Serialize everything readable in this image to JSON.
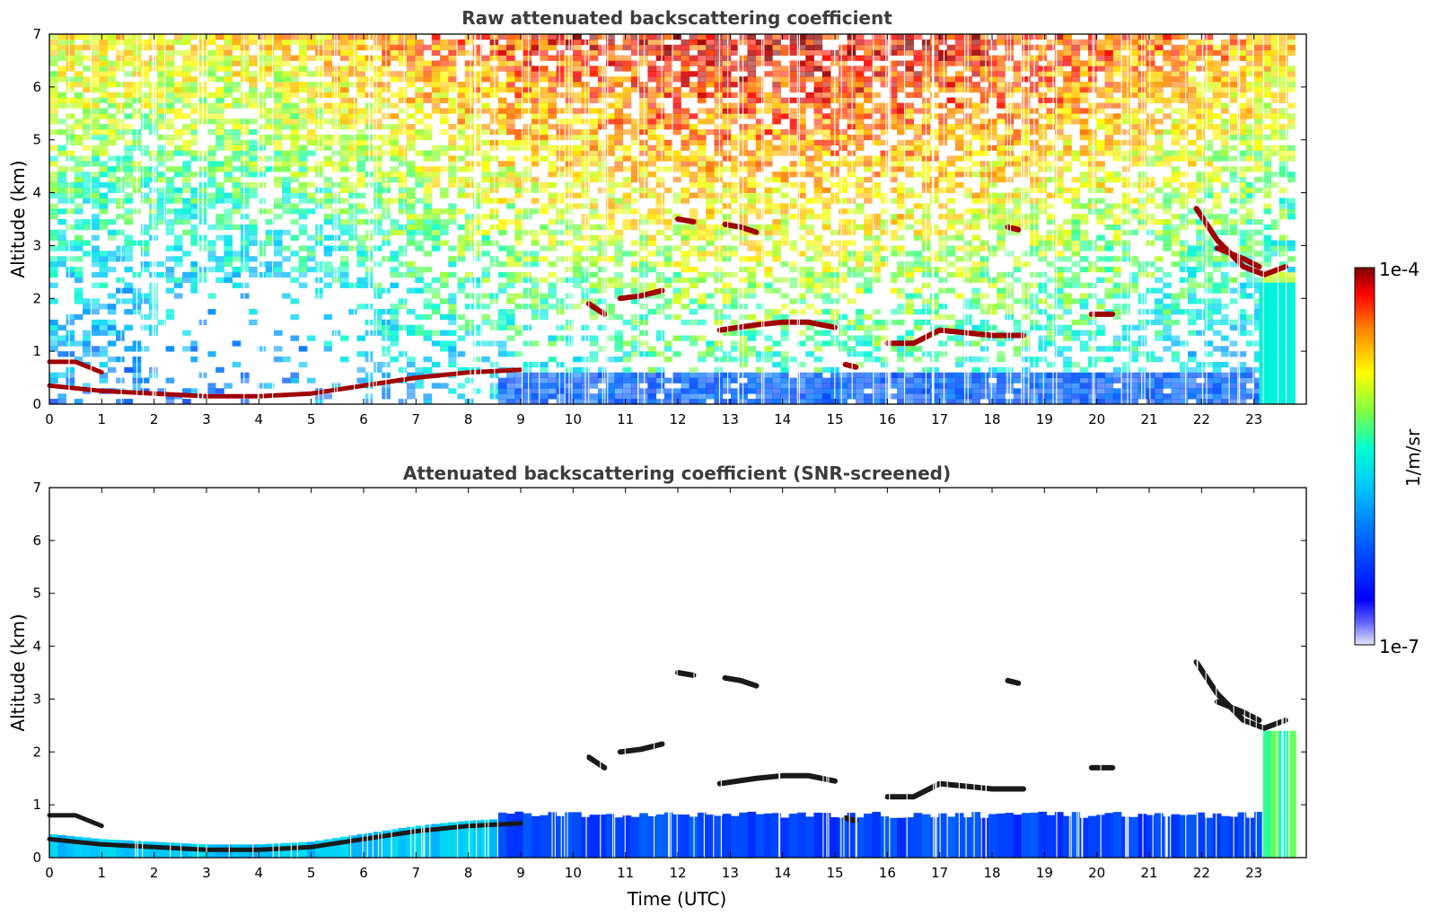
{
  "chart_data": [
    {
      "type": "heatmap",
      "title": "Raw attenuated backscattering coefficient",
      "xlabel": "",
      "ylabel": "Altitude (km)",
      "xlim": [
        0,
        24
      ],
      "ylim": [
        0,
        7
      ],
      "xticks": [
        "0",
        "1",
        "2",
        "3",
        "4",
        "5",
        "6",
        "7",
        "8",
        "9",
        "10",
        "11",
        "12",
        "13",
        "14",
        "15",
        "16",
        "17",
        "18",
        "19",
        "20",
        "21",
        "22",
        "23"
      ],
      "yticks": [
        "0",
        "1",
        "2",
        "3",
        "4",
        "5",
        "6",
        "7"
      ],
      "data_end_hour": 23.8,
      "layers": [
        {
          "feature": "boundary layer top",
          "points": [
            [
              0,
              0.35
            ],
            [
              1,
              0.25
            ],
            [
              2,
              0.2
            ],
            [
              3,
              0.15
            ],
            [
              4,
              0.15
            ],
            [
              5,
              0.2
            ],
            [
              6,
              0.35
            ],
            [
              7,
              0.5
            ],
            [
              8,
              0.6
            ],
            [
              9,
              0.65
            ]
          ]
        },
        {
          "feature": "residual layer",
          "points": [
            [
              0,
              0.8
            ],
            [
              0.5,
              0.8
            ],
            [
              1,
              0.6
            ]
          ]
        },
        {
          "feature": "cloud",
          "points": [
            [
              10.3,
              1.9
            ],
            [
              10.6,
              1.7
            ]
          ]
        },
        {
          "feature": "cloud",
          "points": [
            [
              10.9,
              2.0
            ],
            [
              11.3,
              2.05
            ],
            [
              11.7,
              2.15
            ]
          ]
        },
        {
          "feature": "cloud",
          "points": [
            [
              12.0,
              3.5
            ],
            [
              12.3,
              3.45
            ]
          ]
        },
        {
          "feature": "cloud",
          "points": [
            [
              12.9,
              3.4
            ],
            [
              13.2,
              3.35
            ],
            [
              13.5,
              3.25
            ]
          ]
        },
        {
          "feature": "cloud",
          "points": [
            [
              12.8,
              1.4
            ],
            [
              13.5,
              1.5
            ],
            [
              14.0,
              1.55
            ],
            [
              14.5,
              1.55
            ],
            [
              15.0,
              1.45
            ]
          ]
        },
        {
          "feature": "cloud",
          "points": [
            [
              15.2,
              0.75
            ],
            [
              15.4,
              0.7
            ]
          ]
        },
        {
          "feature": "cloud",
          "points": [
            [
              16.0,
              1.15
            ],
            [
              16.5,
              1.15
            ],
            [
              17.0,
              1.4
            ],
            [
              17.5,
              1.35
            ],
            [
              18.0,
              1.3
            ],
            [
              18.6,
              1.3
            ]
          ]
        },
        {
          "feature": "cloud",
          "points": [
            [
              18.3,
              3.35
            ],
            [
              18.5,
              3.3
            ]
          ]
        },
        {
          "feature": "cloud",
          "points": [
            [
              19.9,
              1.7
            ],
            [
              20.3,
              1.7
            ]
          ]
        },
        {
          "feature": "cloud",
          "points": [
            [
              21.9,
              3.7
            ],
            [
              22.3,
              3.1
            ],
            [
              22.8,
              2.6
            ],
            [
              23.2,
              2.45
            ],
            [
              23.6,
              2.6
            ]
          ]
        },
        {
          "feature": "cloud",
          "points": [
            [
              22.3,
              2.95
            ],
            [
              22.8,
              2.75
            ],
            [
              23.1,
              2.6
            ]
          ]
        },
        {
          "feature": "precipitation",
          "points": [
            [
              23.1,
              0
            ],
            [
              23.8,
              0
            ]
          ]
        }
      ]
    },
    {
      "type": "heatmap",
      "title": "Attenuated backscattering coefficient (SNR-screened)",
      "xlabel": "Time (UTC)",
      "ylabel": "Altitude (km)",
      "xlim": [
        0,
        24
      ],
      "ylim": [
        0,
        7
      ],
      "xticks": [
        "0",
        "1",
        "2",
        "3",
        "4",
        "5",
        "6",
        "7",
        "8",
        "9",
        "10",
        "11",
        "12",
        "13",
        "14",
        "15",
        "16",
        "17",
        "18",
        "19",
        "20",
        "21",
        "22",
        "23"
      ],
      "yticks": [
        "0",
        "1",
        "2",
        "3",
        "4",
        "5",
        "6",
        "7"
      ],
      "data_end_hour": 23.8
    }
  ],
  "colorbar": {
    "label": "1/m/sr",
    "max_label": "1e-4",
    "min_label": "1e-7",
    "scale": "log",
    "colormap": "jet",
    "colors": [
      "#e6e6f8",
      "#0000ff",
      "#00b0ff",
      "#00ffd0",
      "#80ff40",
      "#ffff00",
      "#ff8000",
      "#ff0000",
      "#800000"
    ]
  }
}
